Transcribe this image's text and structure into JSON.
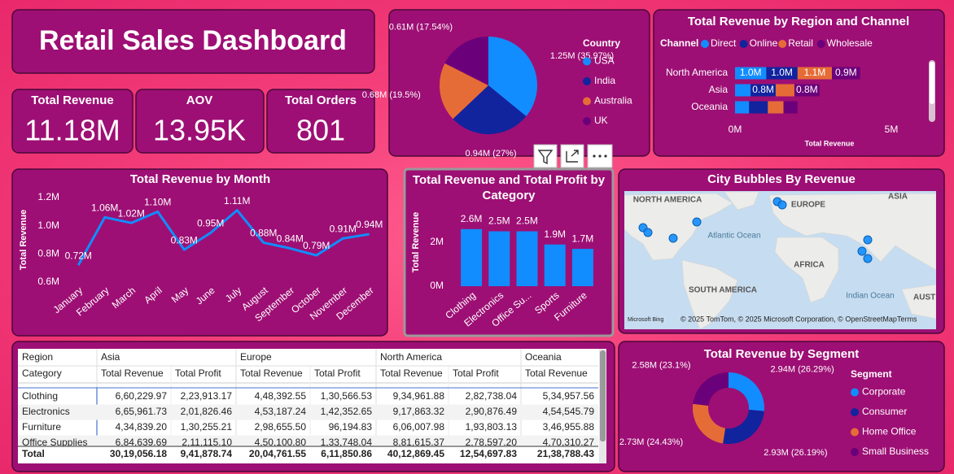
{
  "title": "Retail Sales Dashboard",
  "kpis": [
    {
      "label": "Total Revenue",
      "value": "11.18M"
    },
    {
      "label": "AOV",
      "value": "13.95K"
    },
    {
      "label": "Total Orders",
      "value": "801"
    }
  ],
  "chart_data": [
    {
      "type": "pie",
      "legend_title": "Country",
      "categories": [
        "USA",
        "India",
        "Australia",
        "UK"
      ],
      "values": [
        1.25,
        0.94,
        0.68,
        0.61
      ],
      "value_labels": [
        "1.25M (35.97%)",
        "0.94M (27%)",
        "0.68M (19.5%)",
        "0.61M (17.54%)"
      ],
      "colors": [
        "#118DFF",
        "#12239E",
        "#E66C37",
        "#6B007B"
      ]
    },
    {
      "type": "bar",
      "orientation": "horizontal",
      "stacked": true,
      "title": "Total Revenue by Region and Channel",
      "legend_title": "Channel",
      "x_label": "Total Revenue",
      "categories": [
        "North America",
        "Asia",
        "Oceania"
      ],
      "series": [
        {
          "name": "Direct",
          "color": "#118DFF",
          "values": [
            1.0,
            0.5,
            0.45
          ],
          "value_labels": [
            "1.0M",
            null,
            null
          ]
        },
        {
          "name": "Online",
          "color": "#12239E",
          "values": [
            1.0,
            0.8,
            0.6
          ],
          "value_labels": [
            "1.0M",
            "0.8M",
            null
          ]
        },
        {
          "name": "Retail",
          "color": "#E66C37",
          "values": [
            1.1,
            0.6,
            0.5
          ],
          "value_labels": [
            "1.1M",
            null,
            null
          ]
        },
        {
          "name": "Wholesale",
          "color": "#6B007B",
          "values": [
            0.9,
            0.8,
            0.45
          ],
          "value_labels": [
            "0.9M",
            "0.8M",
            null
          ]
        }
      ],
      "xlim": [
        0,
        5
      ],
      "xticks": [
        {
          "value": 0,
          "label": "0M"
        },
        {
          "value": 5,
          "label": "5M"
        }
      ]
    },
    {
      "type": "line",
      "title": "Total Revenue by Month",
      "y_label": "Total Revenue",
      "categories": [
        "January",
        "February",
        "March",
        "April",
        "May",
        "June",
        "July",
        "August",
        "September",
        "October",
        "November",
        "December"
      ],
      "values": [
        0.72,
        1.06,
        1.02,
        1.1,
        0.83,
        0.95,
        1.11,
        0.88,
        0.84,
        0.79,
        0.91,
        0.94
      ],
      "value_labels": [
        "0.72M",
        "1.06M",
        "1.02M",
        "1.10M",
        "0.83M",
        "0.95M",
        "1.11M",
        "0.88M",
        "0.84M",
        "0.79M",
        "0.91M",
        "0.94M"
      ],
      "color": "#118DFF",
      "ylim": [
        0.6,
        1.2
      ],
      "yticks": [
        {
          "value": 0.6,
          "label": "0.6M"
        },
        {
          "value": 0.8,
          "label": "0.8M"
        },
        {
          "value": 1.0,
          "label": "1.0M"
        },
        {
          "value": 1.2,
          "label": "1.2M"
        }
      ]
    },
    {
      "type": "bar",
      "title": "Total Revenue and Total Profit by Category",
      "y_label": "Total Revenue",
      "categories": [
        "Clothing",
        "Electronics",
        "Office Su...",
        "Sports",
        "Furniture"
      ],
      "values": [
        2.6,
        2.5,
        2.5,
        1.9,
        1.7
      ],
      "value_labels": [
        "2.6M",
        "2.5M",
        "2.5M",
        "1.9M",
        "1.7M"
      ],
      "color": "#118DFF",
      "ylim": [
        0,
        4
      ],
      "yticks": [
        {
          "value": 0,
          "label": "0M"
        },
        {
          "value": 2,
          "label": "2M"
        }
      ]
    },
    {
      "type": "donut",
      "title": "Total Revenue by Segment",
      "legend_title": "Segment",
      "categories": [
        "Corporate",
        "Consumer",
        "Home Office",
        "Small Business"
      ],
      "values": [
        2.94,
        2.93,
        2.73,
        2.58
      ],
      "value_labels": [
        "2.94M (26.29%)",
        "2.93M (26.19%)",
        "2.73M (24.43%)",
        "2.58M (23.1%)"
      ],
      "colors": [
        "#118DFF",
        "#12239E",
        "#E66C37",
        "#6B007B"
      ]
    }
  ],
  "map": {
    "title": "City Bubbles By Revenue",
    "labels": [
      "NORTH AMERICA",
      "EUROPE",
      "ASIA",
      "Atlantic Ocean",
      "AFRICA",
      "SOUTH AMERICA",
      "Indian Ocean",
      "AUST"
    ],
    "provider": "Microsoft Bing",
    "attribution": "© 2025 TomTom, © 2025 Microsoft Corporation, © OpenStreetMap",
    "terms": "Terms"
  },
  "table": {
    "header": [
      [
        "Region",
        "Asia",
        "Europe",
        "North America",
        "Oceania"
      ],
      [
        "Category",
        "Total Revenue",
        "Total Profit",
        "Total Revenue",
        "Total Profit",
        "Total Revenue",
        "Total Profit",
        "Total Revenue"
      ]
    ],
    "rows": [
      [
        "Clothing",
        "6,60,229.97",
        "2,23,913.17",
        "4,48,392.55",
        "1,30,566.53",
        "9,34,961.88",
        "2,82,738.04",
        "5,34,957.56"
      ],
      [
        "Electronics",
        "6,65,961.73",
        "2,01,826.46",
        "4,53,187.24",
        "1,42,352.65",
        "9,17,863.32",
        "2,90,876.49",
        "4,54,545.79"
      ],
      [
        "Furniture",
        "4,34,839.20",
        "1,30,255.21",
        "2,98,655.50",
        "96,194.83",
        "6,06,007.98",
        "1,93,803.13",
        "3,46,955.88"
      ],
      [
        "Office Supplies",
        "6,84,639.69",
        "2,11,115.10",
        "4,50,100.80",
        "1,33,748.04",
        "8,81,615.37",
        "2,78,597.20",
        "4,70,310.27"
      ]
    ],
    "total": [
      "Total",
      "30,19,056.18",
      "9,41,878.74",
      "20,04,761.55",
      "6,11,850.86",
      "40,12,869.45",
      "12,54,697.83",
      "21,38,788.43"
    ]
  }
}
